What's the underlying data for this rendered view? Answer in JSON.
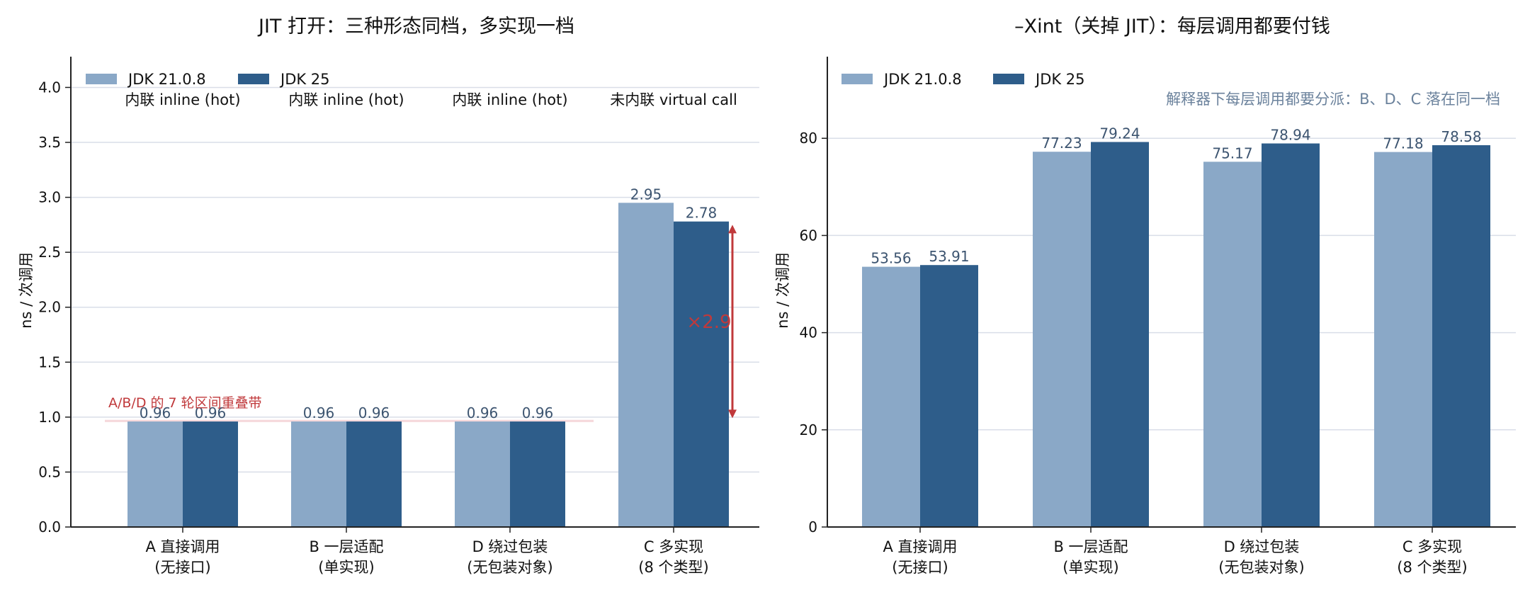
{
  "colors": {
    "jdk21": "#8aa8c7",
    "jdk25": "#2e5d8a",
    "grid": "#d9dee8",
    "axis": "#222222",
    "value_label": "#3c5470",
    "annotation_red": "#c0393b",
    "band_pink": "#f2c8cc",
    "note_gray": "#6b829c"
  },
  "chart_data": [
    {
      "type": "bar",
      "title": "JIT 打开：三种形态同档，多实现一档",
      "ylabel": "ns / 次调用",
      "xlabel": "",
      "ylim": [
        0,
        4.28
      ],
      "yticks": [
        0.0,
        0.5,
        1.0,
        1.5,
        2.0,
        2.5,
        3.0,
        3.5,
        4.0
      ],
      "ytick_labels": [
        "0.0",
        "0.5",
        "1.0",
        "1.5",
        "2.0",
        "2.5",
        "3.0",
        "3.5",
        "4.0"
      ],
      "grid": true,
      "legend_position": "top-left",
      "categories": [
        [
          "A 直接调用",
          "(无接口)"
        ],
        [
          "B 一层适配",
          "(单实现)"
        ],
        [
          "D 绕过包装",
          "(无包装对象)"
        ],
        [
          "C 多实现",
          "(8 个类型)"
        ]
      ],
      "series": [
        {
          "name": "JDK 21.0.8",
          "color_key": "jdk21",
          "values": [
            0.96,
            0.96,
            0.96,
            2.95
          ],
          "labels": [
            "0.96",
            "0.96",
            "0.96",
            "2.95"
          ]
        },
        {
          "name": "JDK 25",
          "color_key": "jdk25",
          "values": [
            0.96,
            0.96,
            0.96,
            2.78
          ],
          "labels": [
            "0.96",
            "0.96",
            "0.96",
            "2.78"
          ]
        }
      ],
      "top_labels": [
        "内联 inline (hot)",
        "内联 inline (hot)",
        "内联 inline (hot)",
        "未内联 virtual call"
      ],
      "band": {
        "label": "A/B/D 的 7 轮区间重叠带",
        "low": 0.955,
        "high": 0.975
      },
      "arrow": {
        "from": 0.99,
        "to": 2.75,
        "label": "×2.9"
      }
    },
    {
      "type": "bar",
      "title": "–Xint（关掉 JIT）：每层调用都要付钱",
      "ylabel": "ns / 次调用",
      "xlabel": "",
      "ylim": [
        0,
        96.8
      ],
      "yticks": [
        0,
        20,
        40,
        60,
        80
      ],
      "ytick_labels": [
        "0",
        "20",
        "40",
        "60",
        "80"
      ],
      "grid": true,
      "legend_position": "top-left",
      "categories": [
        [
          "A 直接调用",
          "(无接口)"
        ],
        [
          "B 一层适配",
          "(单实现)"
        ],
        [
          "D 绕过包装",
          "(无包装对象)"
        ],
        [
          "C 多实现",
          "(8 个类型)"
        ]
      ],
      "series": [
        {
          "name": "JDK 21.0.8",
          "color_key": "jdk21",
          "values": [
            53.56,
            77.23,
            75.17,
            77.18
          ],
          "labels": [
            "53.56",
            "77.23",
            "75.17",
            "77.18"
          ]
        },
        {
          "name": "JDK 25",
          "color_key": "jdk25",
          "values": [
            53.91,
            79.24,
            78.94,
            78.58
          ],
          "labels": [
            "53.91",
            "79.24",
            "78.94",
            "78.58"
          ]
        }
      ],
      "note": "解释器下每层调用都要分派：B、D、C 落在同一档"
    }
  ]
}
